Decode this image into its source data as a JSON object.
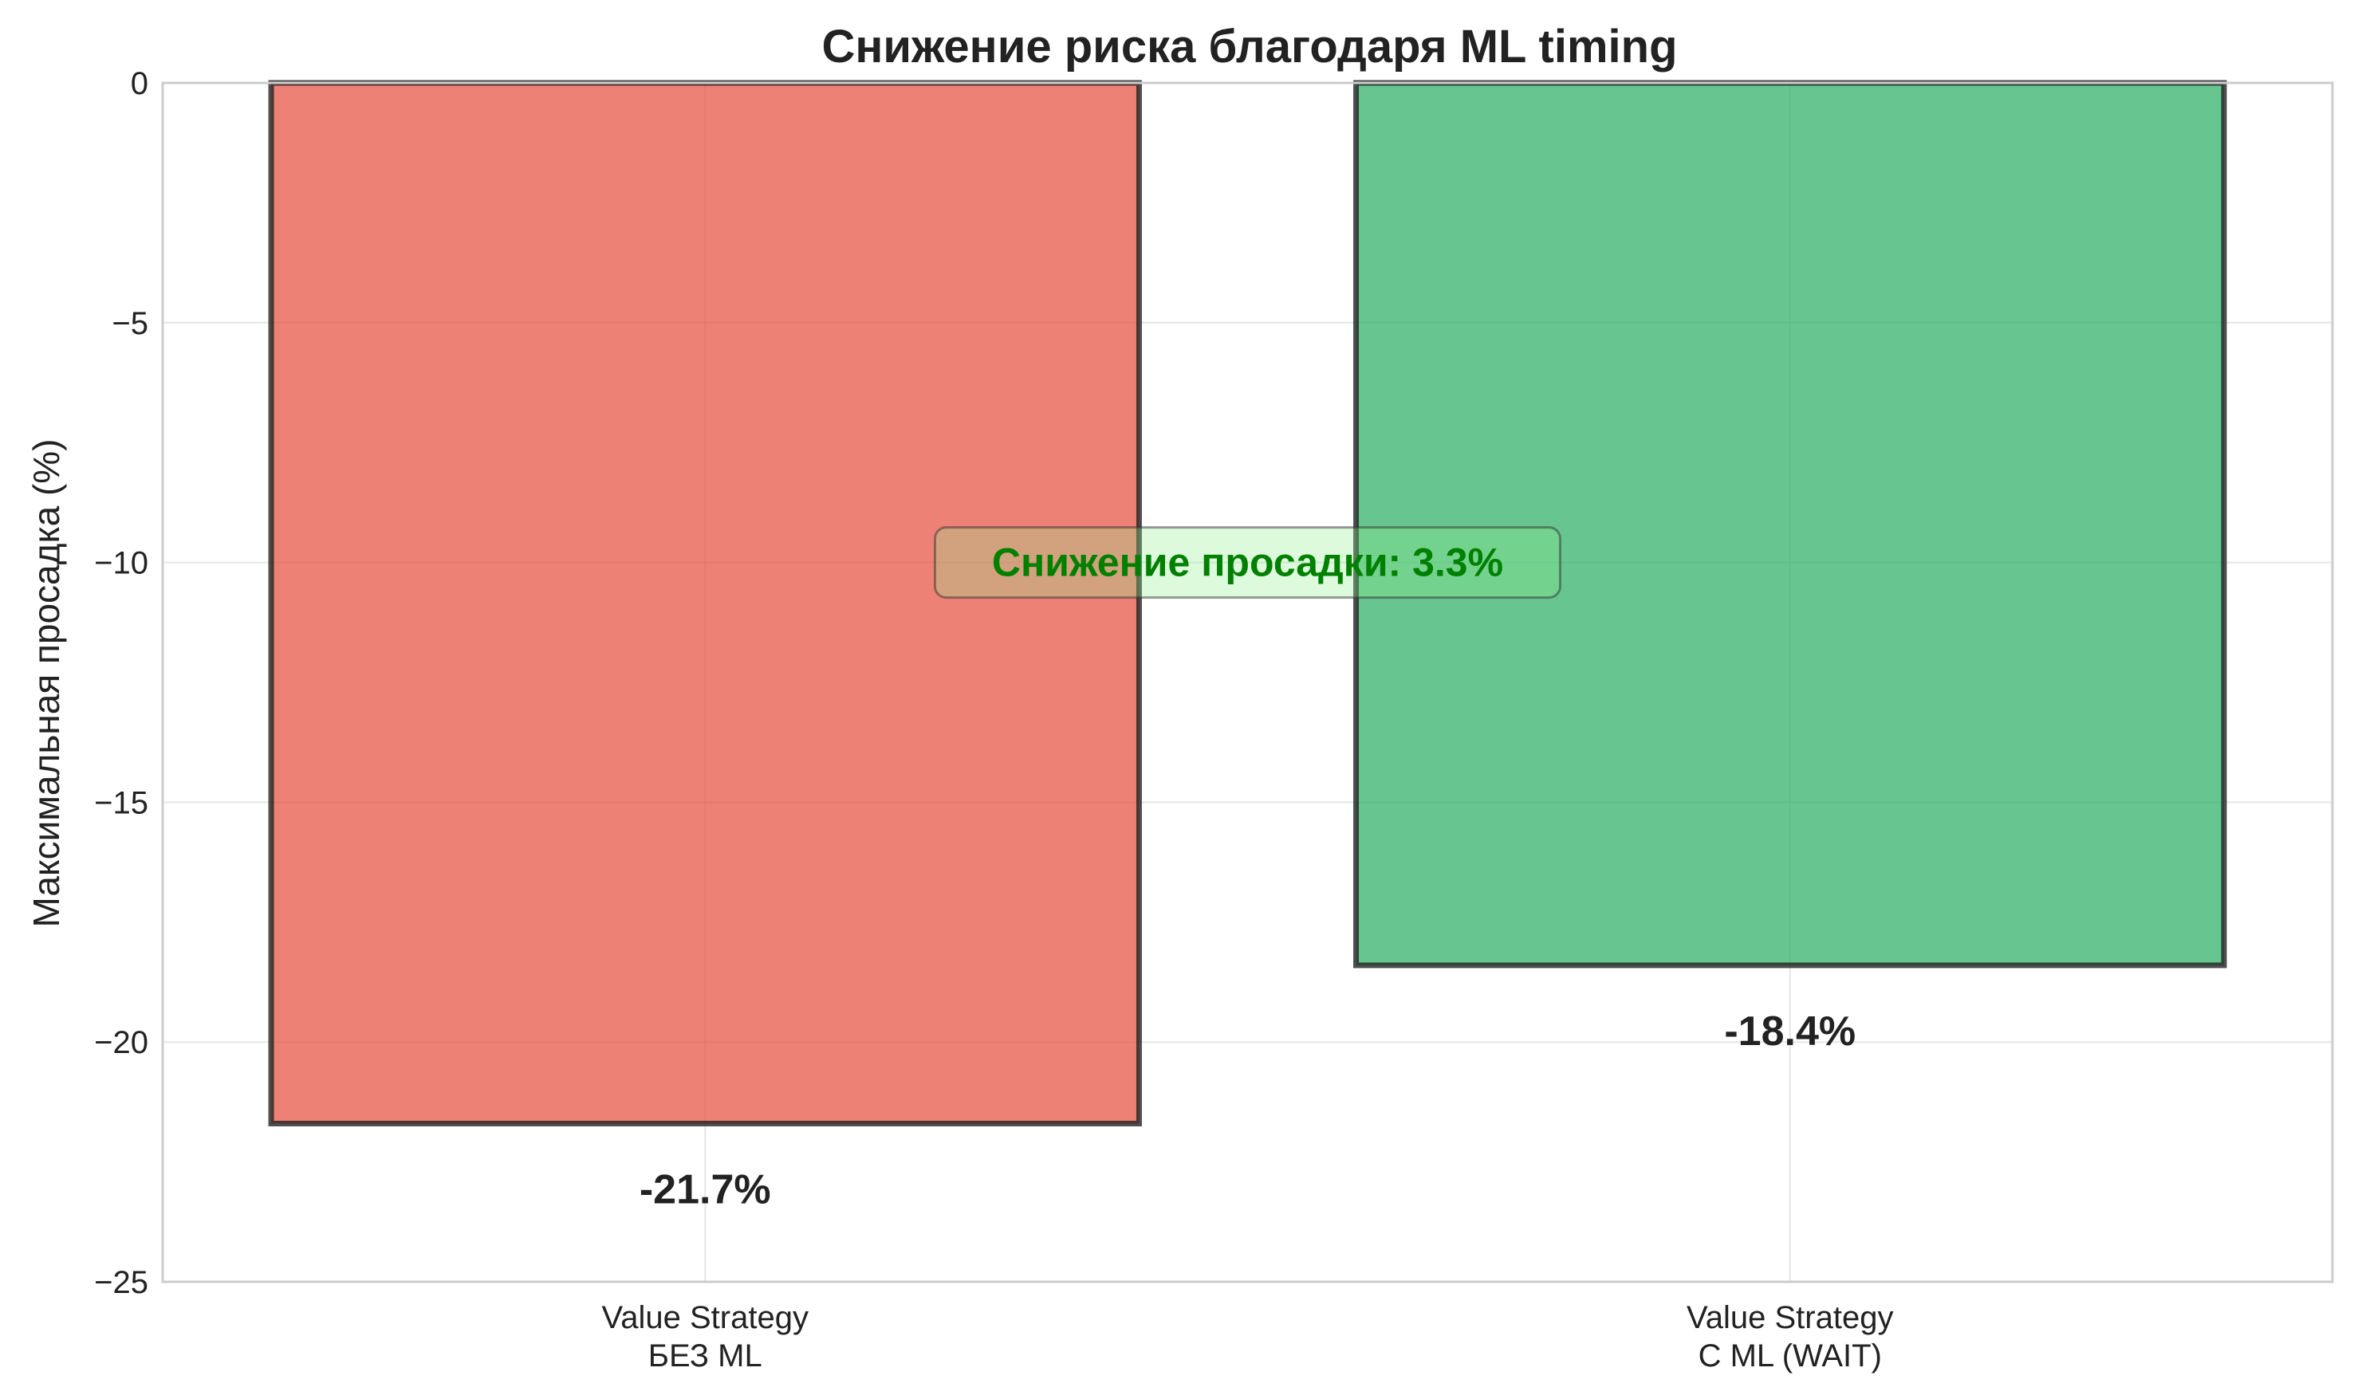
{
  "chart_data": {
    "type": "bar",
    "title": "Снижение риска благодаря ML timing",
    "ylabel": "Максимальная просадка (%)",
    "xlabel": "",
    "ylim": [
      -25,
      0
    ],
    "yticks": [
      0,
      -5,
      -10,
      -15,
      -20,
      -25
    ],
    "ytick_labels": [
      "0",
      "−5",
      "−10",
      "−15",
      "−20",
      "−25"
    ],
    "grid": true,
    "categories": [
      [
        "Value Strategy",
        "БЕЗ ML"
      ],
      [
        "Value Strategy",
        "С ML (WAIT)"
      ]
    ],
    "values": [
      -21.7,
      -18.4
    ],
    "data_labels": [
      "-21.7%",
      "-18.4%"
    ],
    "colors": [
      "#e74c3c",
      "#27ae60"
    ],
    "annotation": {
      "text": "Снижение просадки: 3.3%",
      "y": -10,
      "color": "#008000",
      "box_color": "#90ee90"
    }
  }
}
